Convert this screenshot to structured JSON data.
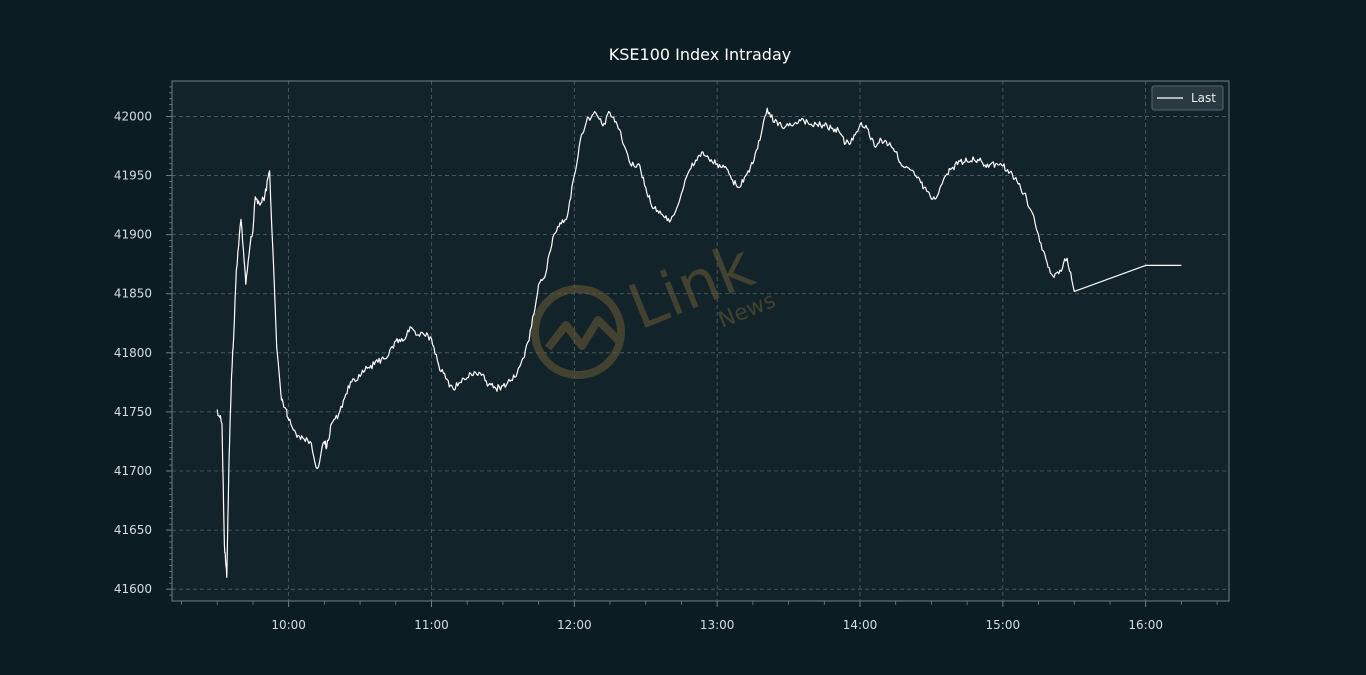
{
  "colors": {
    "background": "#0b1c22",
    "plot_background": "#13232a",
    "grid": "#51636a",
    "line": "#ffffff",
    "axis": "#6f8088",
    "watermark": "#6b5a34"
  },
  "watermark": {
    "word": "Link",
    "sub": "News",
    "icon": "link-news-logo-icon"
  },
  "chart_data": {
    "type": "line",
    "title": "KSE100 Index Intraday",
    "xlabel": "",
    "ylabel": "",
    "x_unit": "time of day",
    "xlim": [
      "09:11",
      "16:35"
    ],
    "ylim": [
      41590,
      42030
    ],
    "grid": true,
    "legend_position": "top-right",
    "x_ticks": [
      "10:00",
      "11:00",
      "12:00",
      "13:00",
      "14:00",
      "15:00",
      "16:00"
    ],
    "y_ticks": [
      41600,
      41650,
      41700,
      41750,
      41800,
      41850,
      41900,
      41950,
      42000
    ],
    "series": [
      {
        "name": "Last",
        "x": [
          "09:30",
          "09:32",
          "09:33",
          "09:34",
          "09:35",
          "09:36",
          "09:37",
          "09:38",
          "09:40",
          "09:42",
          "09:44",
          "09:45",
          "09:46",
          "09:48",
          "09:50",
          "09:52",
          "09:55",
          "09:57",
          "09:59",
          "10:00",
          "10:03",
          "10:06",
          "10:09",
          "10:12",
          "10:15",
          "10:16",
          "10:18",
          "10:21",
          "10:24",
          "10:27",
          "10:30",
          "10:33",
          "10:36",
          "10:39",
          "10:42",
          "10:45",
          "10:48",
          "10:51",
          "10:54",
          "10:57",
          "11:00",
          "11:03",
          "11:06",
          "11:09",
          "11:12",
          "11:15",
          "11:18",
          "11:21",
          "11:24",
          "11:27",
          "11:30",
          "11:33",
          "11:36",
          "11:39",
          "11:42",
          "11:45",
          "11:48",
          "11:51",
          "11:54",
          "11:57",
          "12:00",
          "12:03",
          "12:06",
          "12:09",
          "12:12",
          "12:15",
          "12:18",
          "12:21",
          "12:24",
          "12:27",
          "12:30",
          "12:33",
          "12:36",
          "12:39",
          "12:42",
          "12:45",
          "12:48",
          "12:51",
          "12:54",
          "12:57",
          "13:00",
          "13:03",
          "13:06",
          "13:09",
          "13:12",
          "13:15",
          "13:18",
          "13:21",
          "13:24",
          "13:27",
          "13:30",
          "13:33",
          "13:36",
          "13:39",
          "13:42",
          "13:45",
          "13:48",
          "13:51",
          "13:54",
          "13:57",
          "14:00",
          "14:03",
          "14:06",
          "14:09",
          "14:12",
          "14:15",
          "14:18",
          "14:21",
          "14:24",
          "14:27",
          "14:30",
          "14:33",
          "14:36",
          "14:39",
          "14:42",
          "14:45",
          "14:48",
          "14:51",
          "14:54",
          "14:57",
          "15:00",
          "15:03",
          "15:06",
          "15:09",
          "15:12",
          "15:15",
          "15:18",
          "15:21",
          "15:24",
          "15:27",
          "15:30",
          "16:00",
          "16:15"
        ],
        "y": [
          41752,
          41740,
          41637,
          41610,
          41712,
          41780,
          41818,
          41870,
          41913,
          41858,
          41895,
          41903,
          41932,
          41925,
          41933,
          41954,
          41805,
          41760,
          41752,
          41743,
          41732,
          41728,
          41725,
          41702,
          41725,
          41720,
          41740,
          41748,
          41765,
          41778,
          41780,
          41787,
          41790,
          41795,
          41798,
          41810,
          41810,
          41822,
          41815,
          41815,
          41812,
          41790,
          41778,
          41770,
          41775,
          41779,
          41784,
          41781,
          41773,
          41770,
          41772,
          41776,
          41783,
          41796,
          41822,
          41858,
          41867,
          41898,
          41910,
          41915,
          41950,
          41985,
          41999,
          42003,
          41992,
          42003,
          41993,
          41975,
          41958,
          41960,
          41940,
          41922,
          41920,
          41912,
          41917,
          41935,
          41953,
          41963,
          41970,
          41962,
          41960,
          41957,
          41947,
          41940,
          41950,
          41960,
          41980,
          42007,
          41995,
          41992,
          41992,
          41995,
          41998,
          41993,
          41993,
          41992,
          41990,
          41988,
          41977,
          41980,
          41993,
          41990,
          41975,
          41980,
          41976,
          41970,
          41958,
          41955,
          41948,
          41940,
          41930,
          41935,
          41950,
          41957,
          41962,
          41962,
          41963,
          41962,
          41957,
          41960,
          41958,
          41953,
          41945,
          41935,
          41920,
          41900,
          41880,
          41865,
          41870,
          41880,
          41852,
          41874,
          41874
        ]
      }
    ]
  }
}
